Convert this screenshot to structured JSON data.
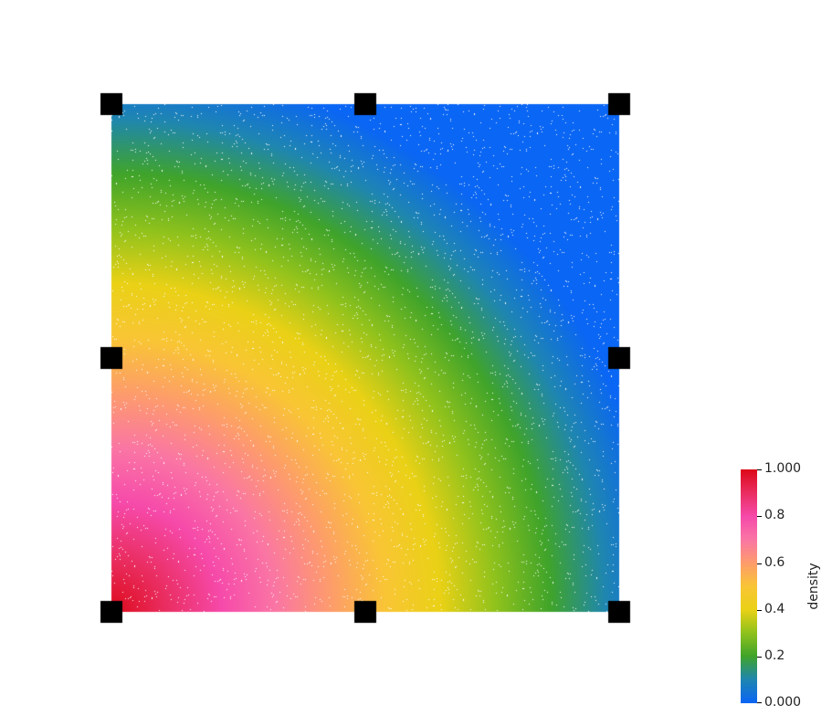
{
  "colorbar": {
    "title": "density",
    "range": [
      0.0,
      1.0
    ],
    "tick_labels": [
      "1.000",
      "0.8",
      "0.6",
      "0.4",
      "0.2",
      "0.000"
    ],
    "tick_values": [
      1.0,
      0.8,
      0.6,
      0.4,
      0.2,
      0.0
    ],
    "colormap_stops": [
      {
        "value": 0.0,
        "color": "#0a66f4"
      },
      {
        "value": 0.1,
        "color": "#1f86b0"
      },
      {
        "value": 0.2,
        "color": "#40a42a"
      },
      {
        "value": 0.3,
        "color": "#90c21c"
      },
      {
        "value": 0.4,
        "color": "#ead116"
      },
      {
        "value": 0.5,
        "color": "#f9c535"
      },
      {
        "value": 0.6,
        "color": "#fd9c6c"
      },
      {
        "value": 0.7,
        "color": "#fa76a4"
      },
      {
        "value": 0.8,
        "color": "#f64aaa"
      },
      {
        "value": 0.9,
        "color": "#ea2e62"
      },
      {
        "value": 1.0,
        "color": "#dd0a1a"
      }
    ]
  },
  "field": {
    "description_free": true,
    "value_at_corners": {
      "bottom-left": 1.0,
      "top-right": 0.0,
      "top-left": 0.0,
      "bottom-right": 0.0
    },
    "marker_color": "#000000",
    "background_color": "#ffffff"
  }
}
